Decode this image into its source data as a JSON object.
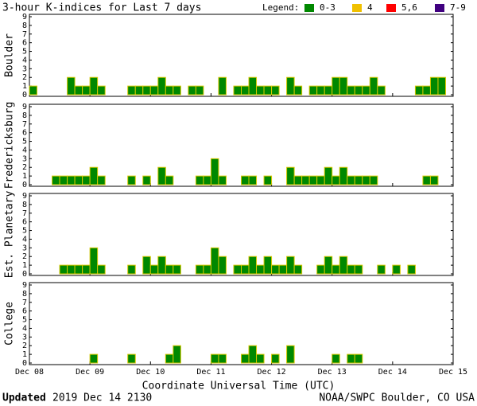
{
  "title": "3-hour K-indices for Last 7 days",
  "legend": {
    "title": "Legend:",
    "entries": [
      {
        "label": "0-3",
        "color": "#008800"
      },
      {
        "label": "4",
        "color": "#f0c000"
      },
      {
        "label": "5,6",
        "color": "#ff0000"
      },
      {
        "label": "7-9",
        "color": "#400080"
      }
    ]
  },
  "x_axis": {
    "label": "Coordinate Universal Time (UTC)",
    "xlim": [
      0,
      56
    ],
    "xticks": [
      {
        "value": 0,
        "label": "Dec 08"
      },
      {
        "value": 8,
        "label": "Dec 09"
      },
      {
        "value": 16,
        "label": "Dec 10"
      },
      {
        "value": 24,
        "label": "Dec 11"
      },
      {
        "value": 32,
        "label": "Dec 12"
      },
      {
        "value": 40,
        "label": "Dec 13"
      },
      {
        "value": 48,
        "label": "Dec 14"
      },
      {
        "value": 56,
        "label": "Dec 15"
      }
    ]
  },
  "footer": {
    "updated_label": "Updated",
    "updated_time": "2019 Dec 14 2130",
    "source": "NOAA/SWPC Boulder, CO USA"
  },
  "chart_data": [
    {
      "type": "bar",
      "title": "Boulder",
      "color": "#008800",
      "ylim": [
        0,
        9
      ],
      "yticks": [
        0,
        1,
        2,
        3,
        4,
        5,
        6,
        7,
        8,
        9
      ],
      "values": [
        1,
        0,
        0,
        0,
        0,
        2,
        1,
        1,
        2,
        1,
        0,
        0,
        0,
        1,
        1,
        1,
        1,
        2,
        1,
        1,
        0,
        1,
        1,
        0,
        0,
        2,
        0,
        1,
        1,
        2,
        1,
        1,
        1,
        0,
        2,
        1,
        0,
        1,
        1,
        1,
        2,
        2,
        1,
        1,
        1,
        2,
        1,
        0,
        0,
        0,
        0,
        1,
        1,
        2,
        2,
        0
      ]
    },
    {
      "type": "bar",
      "title": "Fredericksburg",
      "color": "#008800",
      "ylim": [
        0,
        9
      ],
      "yticks": [
        0,
        1,
        2,
        3,
        4,
        5,
        6,
        7,
        8,
        9
      ],
      "values": [
        0,
        0,
        0,
        1,
        1,
        1,
        1,
        1,
        2,
        1,
        0,
        0,
        0,
        1,
        0,
        1,
        0,
        2,
        1,
        0,
        0,
        0,
        1,
        1,
        3,
        1,
        0,
        0,
        1,
        1,
        0,
        1,
        0,
        0,
        2,
        1,
        1,
        1,
        1,
        2,
        1,
        2,
        1,
        1,
        1,
        1,
        0,
        0,
        0,
        0,
        0,
        0,
        1,
        1,
        0,
        0
      ]
    },
    {
      "type": "bar",
      "title": "Est. Planetary",
      "color": "#008800",
      "ylim": [
        0,
        9
      ],
      "yticks": [
        0,
        1,
        2,
        3,
        4,
        5,
        6,
        7,
        8,
        9
      ],
      "values": [
        0,
        0,
        0,
        0,
        1,
        1,
        1,
        1,
        3,
        1,
        0,
        0,
        0,
        1,
        0,
        2,
        1,
        2,
        1,
        1,
        0,
        0,
        1,
        1,
        3,
        2,
        0,
        1,
        1,
        2,
        1,
        2,
        1,
        1,
        2,
        1,
        0,
        0,
        1,
        2,
        1,
        2,
        1,
        1,
        0,
        0,
        1,
        0,
        1,
        0,
        1,
        0,
        0,
        0,
        0,
        0
      ]
    },
    {
      "type": "bar",
      "title": "College",
      "color": "#008800",
      "ylim": [
        0,
        9
      ],
      "yticks": [
        0,
        1,
        2,
        3,
        4,
        5,
        6,
        7,
        8,
        9
      ],
      "values": [
        0,
        0,
        0,
        0,
        0,
        0,
        0,
        0,
        1,
        0,
        0,
        0,
        0,
        1,
        0,
        0,
        0,
        0,
        1,
        2,
        0,
        0,
        0,
        0,
        1,
        1,
        0,
        0,
        1,
        2,
        1,
        0,
        1,
        0,
        2,
        0,
        0,
        0,
        0,
        0,
        1,
        0,
        1,
        1,
        0,
        0,
        0,
        0,
        0,
        0,
        0,
        0,
        0,
        0,
        0,
        0
      ]
    }
  ]
}
